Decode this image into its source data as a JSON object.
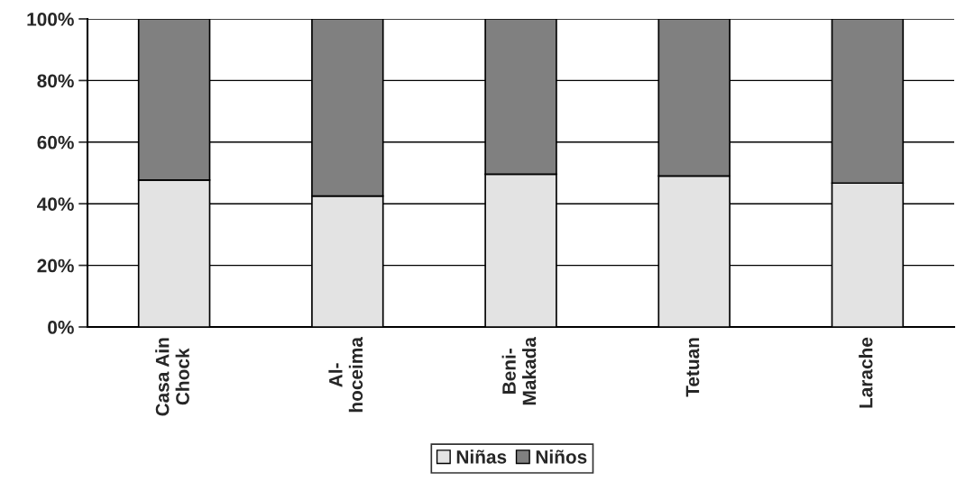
{
  "chart_data": {
    "type": "bar",
    "stacked": true,
    "categories": [
      "Casa Ain\nChock",
      "Al-\nhoceima",
      "Beni-\nMakada",
      "Tetuan",
      "Larache"
    ],
    "series": [
      {
        "name": "Niñas",
        "color": "#e3e3e3",
        "values": [
          47.7,
          42.5,
          49.6,
          49.0,
          46.7
        ]
      },
      {
        "name": "Niños",
        "color": "#808080",
        "values": [
          52.3,
          57.5,
          50.4,
          51.0,
          53.3
        ]
      }
    ],
    "ylim": [
      0,
      100
    ],
    "yticks": [
      {
        "value": 0,
        "label": "0%"
      },
      {
        "value": 20,
        "label": "20%"
      },
      {
        "value": 40,
        "label": "40%"
      },
      {
        "value": 60,
        "label": "60%"
      },
      {
        "value": 80,
        "label": "80%"
      },
      {
        "value": 100,
        "label": "100%"
      }
    ],
    "grid": "y",
    "legend": "bottom"
  }
}
